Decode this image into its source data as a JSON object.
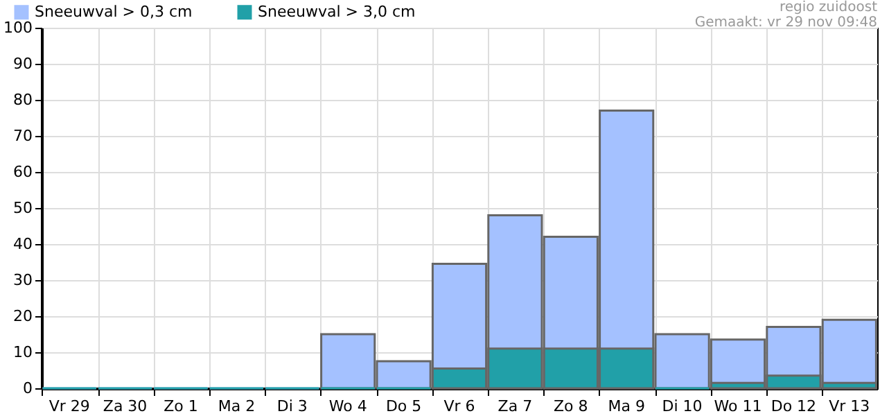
{
  "chart_data": {
    "type": "bar",
    "categories": [
      "Vr 29",
      "Za 30",
      "Zo 1",
      "Ma 2",
      "Di 3",
      "Wo 4",
      "Do 5",
      "Vr 6",
      "Za 7",
      "Zo 8",
      "Ma 9",
      "Di 10",
      "Wo 11",
      "Do 12",
      "Vr 13"
    ],
    "series": [
      {
        "name": "Sneeuwval > 0,3 cm",
        "color": "#a4c1ff",
        "values": [
          0,
          0,
          0,
          0,
          0,
          15,
          7.5,
          34.5,
          48,
          42,
          77,
          15,
          13.5,
          17,
          19
        ]
      },
      {
        "name": "Sneeuwval > 3,0 cm",
        "color": "#21a0a8",
        "values": [
          0,
          0,
          0,
          0,
          0,
          0,
          0,
          5.5,
          11,
          11,
          11,
          0,
          1.5,
          3.5,
          1.5
        ]
      }
    ],
    "ylim": [
      0,
      100
    ],
    "yticks": [
      0,
      10,
      20,
      30,
      40,
      50,
      60,
      70,
      80,
      90,
      100
    ],
    "grid": true,
    "legend": "top left",
    "annotations": [
      "regio zuidoost",
      "Gemaakt: vr 29 nov 09:48"
    ]
  }
}
